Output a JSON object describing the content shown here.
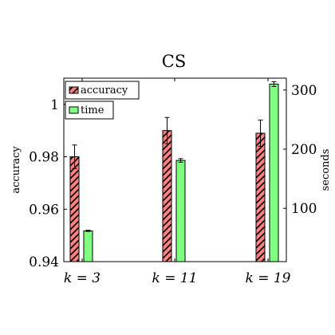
{
  "chart_data": {
    "type": "bar",
    "title": "CS",
    "categories": [
      "k = 3",
      "k = 11",
      "k = 19"
    ],
    "ylabel": "accuracy",
    "y2label": "seconds",
    "ylim": [
      0.94,
      1.01
    ],
    "y2lim": [
      10,
      320
    ],
    "yticks": [
      "0.94",
      "0.96",
      "0.98",
      "1"
    ],
    "y2ticks": [
      "100",
      "200",
      "300"
    ],
    "legend_placement": "top-left",
    "series": [
      {
        "name": "accuracy",
        "axis": "left",
        "color": "#ff7f7f",
        "hatch": "north-east-lines",
        "values": [
          0.98,
          0.99,
          0.989
        ],
        "error": [
          0.0045,
          0.005,
          0.005
        ]
      },
      {
        "name": "time",
        "axis": "right",
        "color": "#80ff80",
        "values": [
          62,
          181,
          310
        ],
        "error": [
          1,
          3,
          4
        ]
      }
    ]
  }
}
